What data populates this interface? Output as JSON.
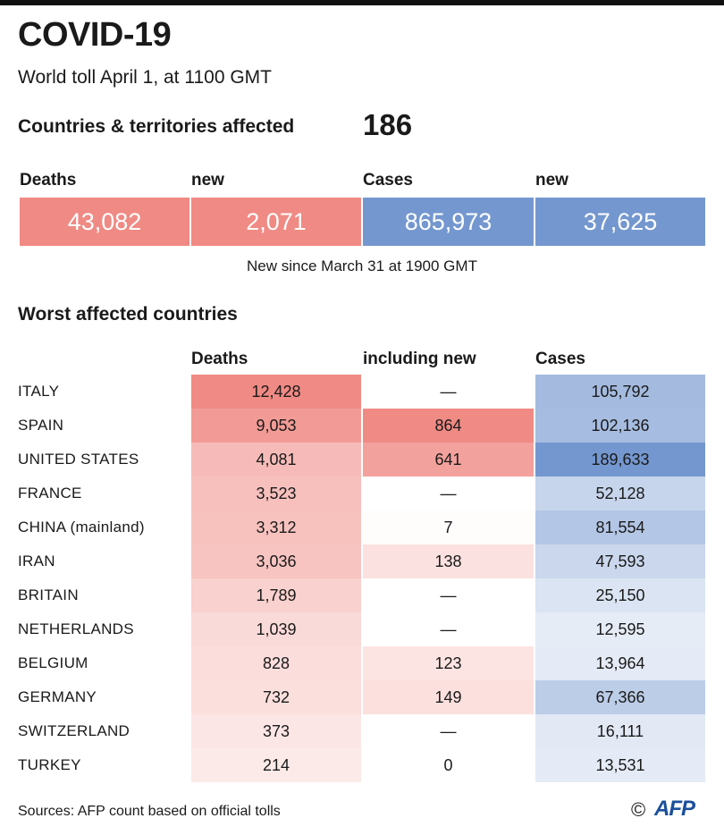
{
  "title": "COVID-19",
  "subtitle": "World toll April 1, at 1100 GMT",
  "countries_label": "Countries & territories affected",
  "countries_value": "186",
  "kpis": [
    {
      "label": "Deaths",
      "value": "43,082"
    },
    {
      "label": "new",
      "value": "2,071"
    },
    {
      "label": "Cases",
      "value": "865,973"
    },
    {
      "label": "new",
      "value": "37,625"
    }
  ],
  "kpi_note": "New since  March 31 at 1900 GMT",
  "section_title": "Worst affected countries",
  "colors": {
    "deaths": "#f08a84",
    "cases": "#7497cf"
  },
  "chart_data": {
    "type": "table",
    "title": "Worst affected countries",
    "columns": [
      "Deaths",
      "including new",
      "Cases"
    ],
    "rows": [
      {
        "country": "ITALY",
        "deaths": 12428,
        "new_deaths": null,
        "cases": 105792
      },
      {
        "country": "SPAIN",
        "deaths": 9053,
        "new_deaths": 864,
        "cases": 102136
      },
      {
        "country": "UNITED STATES",
        "deaths": 4081,
        "new_deaths": 641,
        "cases": 189633
      },
      {
        "country": "FRANCE",
        "deaths": 3523,
        "new_deaths": null,
        "cases": 52128
      },
      {
        "country": "CHINA (mainland)",
        "deaths": 3312,
        "new_deaths": 7,
        "cases": 81554
      },
      {
        "country": "IRAN",
        "deaths": 3036,
        "new_deaths": 138,
        "cases": 47593
      },
      {
        "country": "BRITAIN",
        "deaths": 1789,
        "new_deaths": null,
        "cases": 25150
      },
      {
        "country": "NETHERLANDS",
        "deaths": 1039,
        "new_deaths": null,
        "cases": 12595
      },
      {
        "country": "BELGIUM",
        "deaths": 828,
        "new_deaths": 123,
        "cases": 13964
      },
      {
        "country": "GERMANY",
        "deaths": 732,
        "new_deaths": 149,
        "cases": 67366
      },
      {
        "country": "SWITZERLAND",
        "deaths": 373,
        "new_deaths": null,
        "cases": 16111
      },
      {
        "country": "TURKEY",
        "deaths": 214,
        "new_deaths": 0,
        "cases": 13531
      }
    ]
  },
  "source": "Sources: AFP count based on official tolls",
  "copyright": "©",
  "logo": "AFP"
}
